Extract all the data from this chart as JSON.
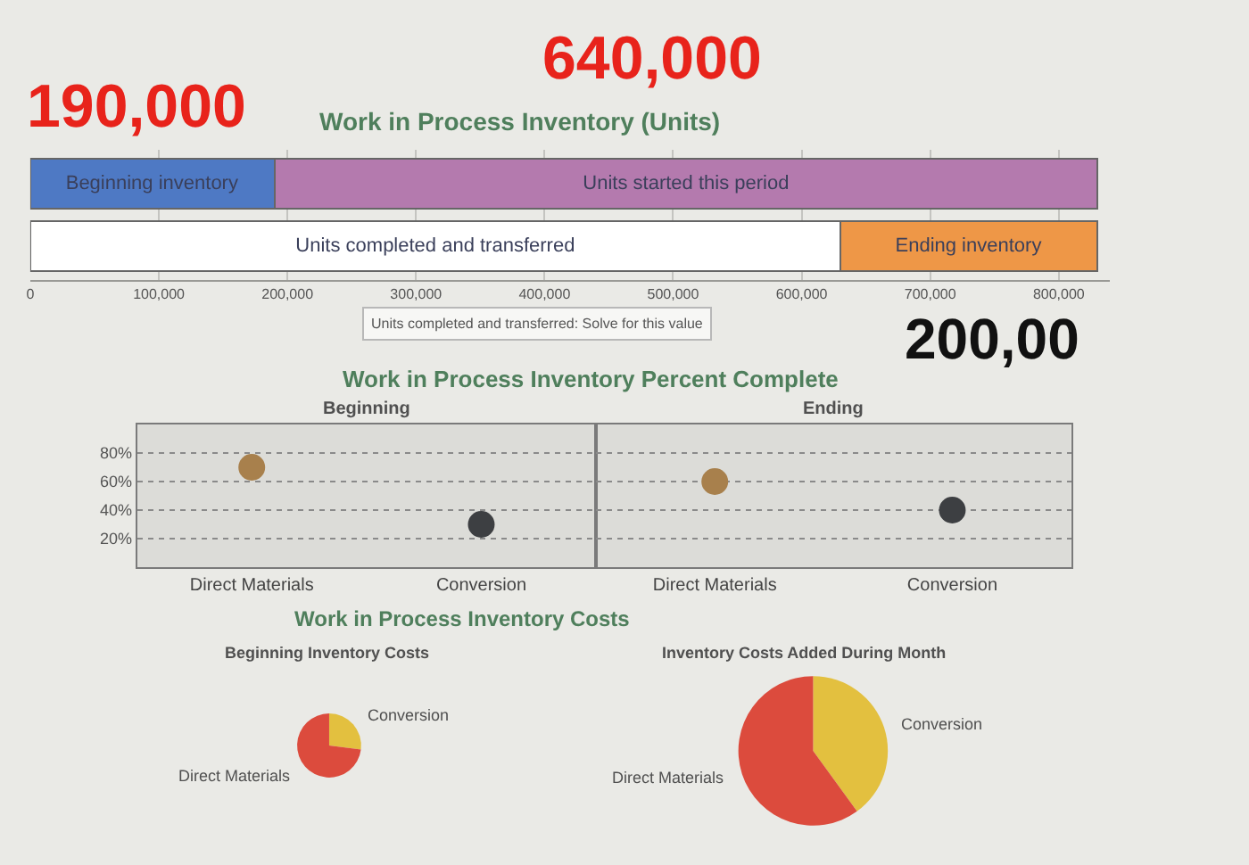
{
  "chart_data": [
    {
      "type": "bar",
      "orientation": "horizontal",
      "stacked": true,
      "title": "Work in Process Inventory (Units)",
      "categories": [
        null,
        null
      ],
      "series": [
        {
          "name": "Beginning inventory",
          "color": "#4e79c4",
          "values": [
            190000,
            null
          ]
        },
        {
          "name": "Units started this period",
          "color": "#b47aae",
          "values": [
            640000,
            null
          ]
        },
        {
          "name": "Units completed and transferred",
          "color": "#ffffff",
          "values": [
            null,
            630000
          ]
        },
        {
          "name": "Ending inventory",
          "color": "#ee9747",
          "values": [
            null,
            200000
          ]
        }
      ],
      "xlim": [
        0,
        840000
      ],
      "xticks": [
        0,
        {
          "value": 100000,
          "label": "100,000"
        },
        {
          "value": 200000,
          "label": "200,000"
        },
        {
          "value": 300000,
          "label": "300,000"
        },
        {
          "value": 400000,
          "label": "400,000"
        },
        {
          "value": 500000,
          "label": "500,000"
        },
        {
          "value": 600000,
          "label": "600,000"
        },
        {
          "value": 700000,
          "label": "700,000"
        },
        {
          "value": 800000,
          "label": "800,000"
        }
      ],
      "grid": "x",
      "tick_labels": "x",
      "annotations": [
        "190,000",
        "640,000",
        "200,00",
        "Units completed and transferred: Solve for this value"
      ]
    },
    {
      "type": "scatter",
      "title": "Work in Process Inventory Percent Complete",
      "subtitle": "Beginning",
      "categories": [
        "Direct Materials",
        "Conversion"
      ],
      "values": [
        70,
        30
      ],
      "colors": [
        "#a8804c",
        "#3d3f42"
      ],
      "marker": "circle",
      "ylim": [
        0,
        100
      ],
      "yticks": [
        {
          "value": 20,
          "label": "20%"
        },
        {
          "value": 40,
          "label": "40%"
        },
        {
          "value": 60,
          "label": "60%"
        },
        {
          "value": 80,
          "label": "80%"
        }
      ],
      "grid": "y"
    },
    {
      "type": "scatter",
      "subtitle": "Ending",
      "categories": [
        "Direct Materials",
        "Conversion"
      ],
      "values": [
        60,
        40
      ],
      "colors": [
        "#a8804c",
        "#3d3f42"
      ],
      "marker": "circle",
      "ylim": [
        0,
        100
      ],
      "yticks": [
        {
          "value": 20,
          "label": null
        },
        {
          "value": 40,
          "label": null
        },
        {
          "value": 60,
          "label": null
        },
        {
          "value": 80,
          "label": null
        }
      ],
      "grid": "y",
      "tick_labels": "x"
    },
    {
      "type": "pie",
      "title": "Work in Process Inventory Costs",
      "subtitle": "Beginning Inventory Costs",
      "categories": [
        "Conversion",
        "Direct Materials"
      ],
      "values": [
        27,
        73
      ],
      "colors": [
        "#e3c03f",
        "#dc4b3d"
      ]
    },
    {
      "type": "pie",
      "subtitle": "Inventory Costs Added During Month",
      "categories": [
        "Conversion",
        "Direct Materials"
      ],
      "values": [
        40,
        60
      ],
      "colors": [
        "#e3c03f",
        "#dc4b3d"
      ]
    }
  ]
}
